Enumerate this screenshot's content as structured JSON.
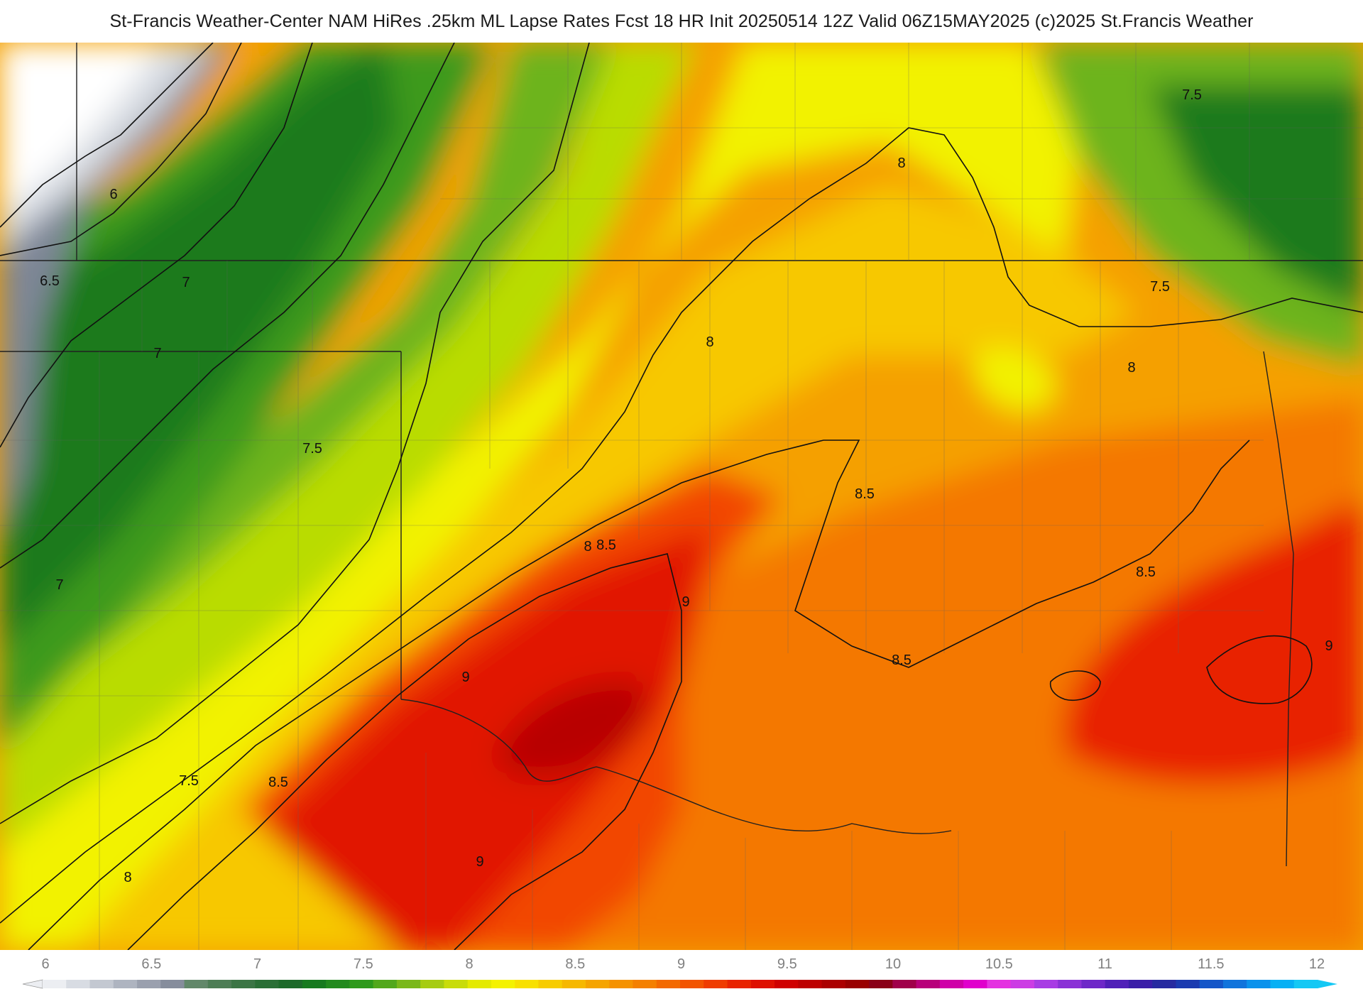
{
  "header": {
    "title": "St-Francis Weather-Center NAM HiRes .25km ML Lapse Rates  Fcst 18 HR Init 20250514 12Z  Valid 06Z15MAY2025    (c)2025 St.Francis Weather"
  },
  "map": {
    "contour_labels": [
      "6",
      "6.5",
      "7",
      "7",
      "7",
      "7.5",
      "7.5",
      "7.5",
      "7.5",
      "8",
      "8",
      "8",
      "8",
      "8",
      "8.5",
      "8.5",
      "8.5",
      "8.5",
      "8.5",
      "9",
      "9",
      "9",
      "9"
    ],
    "colors": {
      "grey_light": "#d7dbe2",
      "grey_dark": "#7e8696",
      "green_dark": "#1e7a1e",
      "green": "#3c9a1e",
      "green_light": "#6db41e",
      "yellow_green": "#b9dc00",
      "yellow": "#f2f200",
      "yellow_orange": "#f7c800",
      "orange": "#f5a000",
      "orange_dark": "#f47800",
      "red_orange": "#f24600",
      "red": "#e11400",
      "dark_red": "#b80000"
    }
  },
  "legend": {
    "ticks": [
      "6",
      "6.5",
      "7",
      "7.5",
      "8",
      "8.5",
      "9",
      "9.5",
      "10",
      "10.5",
      "11",
      "11.5",
      "12"
    ],
    "colors": [
      "#eceef2",
      "#d8dce3",
      "#c3c8d1",
      "#aeb4c0",
      "#9aa0ae",
      "#868d9c",
      "#62886a",
      "#4d7d55",
      "#3b7545",
      "#2a6f36",
      "#1d6a2a",
      "#177a1f",
      "#228a1e",
      "#2e9a1c",
      "#52a81c",
      "#7ab81a",
      "#a6cc12",
      "#c8dc0a",
      "#e4ea00",
      "#f4f200",
      "#f8e000",
      "#f7cc00",
      "#f6b800",
      "#f5a400",
      "#f59200",
      "#f48000",
      "#f36a00",
      "#f25400",
      "#ef3c00",
      "#e82400",
      "#de1000",
      "#cf0000",
      "#bd0000",
      "#ab0000",
      "#990000",
      "#8a0018",
      "#a0004a",
      "#b8007a",
      "#cf00a8",
      "#e000cc",
      "#e432e0",
      "#cc3ce4",
      "#a83ce4",
      "#8a32d6",
      "#6e28c8",
      "#5020b8",
      "#3a1ea8",
      "#262aa0",
      "#1a3ab0",
      "#1456c8",
      "#1074dc",
      "#0a92ec",
      "#06b0f4",
      "#14c8f4"
    ]
  }
}
